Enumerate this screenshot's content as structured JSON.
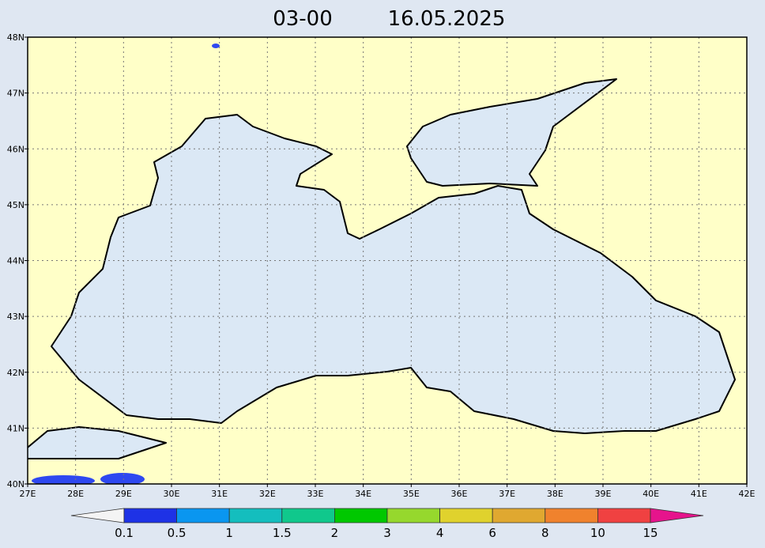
{
  "map": {
    "title_time": "03-00",
    "title_date": "16.05.2025",
    "lon_range": [
      27,
      42
    ],
    "lat_range": [
      40,
      48
    ],
    "lon_ticks": [
      {
        "value": 27,
        "label": "27E"
      },
      {
        "value": 28,
        "label": "28E"
      },
      {
        "value": 29,
        "label": "29E"
      },
      {
        "value": 30,
        "label": "30E"
      },
      {
        "value": 31,
        "label": "31E"
      },
      {
        "value": 32,
        "label": "32E"
      },
      {
        "value": 33,
        "label": "33E"
      },
      {
        "value": 34,
        "label": "34E"
      },
      {
        "value": 35,
        "label": "35E"
      },
      {
        "value": 36,
        "label": "36E"
      },
      {
        "value": 37,
        "label": "37E"
      },
      {
        "value": 38,
        "label": "38E"
      },
      {
        "value": 39,
        "label": "39E"
      },
      {
        "value": 40,
        "label": "40E"
      },
      {
        "value": 41,
        "label": "41E"
      },
      {
        "value": 42,
        "label": "42E"
      }
    ],
    "lat_ticks": [
      {
        "value": 40,
        "label": "40N"
      },
      {
        "value": 41,
        "label": "41N"
      },
      {
        "value": 42,
        "label": "42N"
      },
      {
        "value": 43,
        "label": "43N"
      },
      {
        "value": 44,
        "label": "44N"
      },
      {
        "value": 45,
        "label": "45N"
      },
      {
        "value": 46,
        "label": "46N"
      },
      {
        "value": 47,
        "label": "47N"
      },
      {
        "value": 48,
        "label": "48N"
      }
    ],
    "colorbar": {
      "levels": [
        "0.1",
        "0.5",
        "1",
        "1.5",
        "2",
        "3",
        "4",
        "6",
        "8",
        "10",
        "15"
      ],
      "colors": [
        "#f4f4f4",
        "#1e32e6",
        "#0a96f0",
        "#14bebe",
        "#10c88c",
        "#00c800",
        "#96d82d",
        "#e0d22d",
        "#e0a830",
        "#f0822d",
        "#f04141",
        "#e6148c"
      ]
    }
  }
}
